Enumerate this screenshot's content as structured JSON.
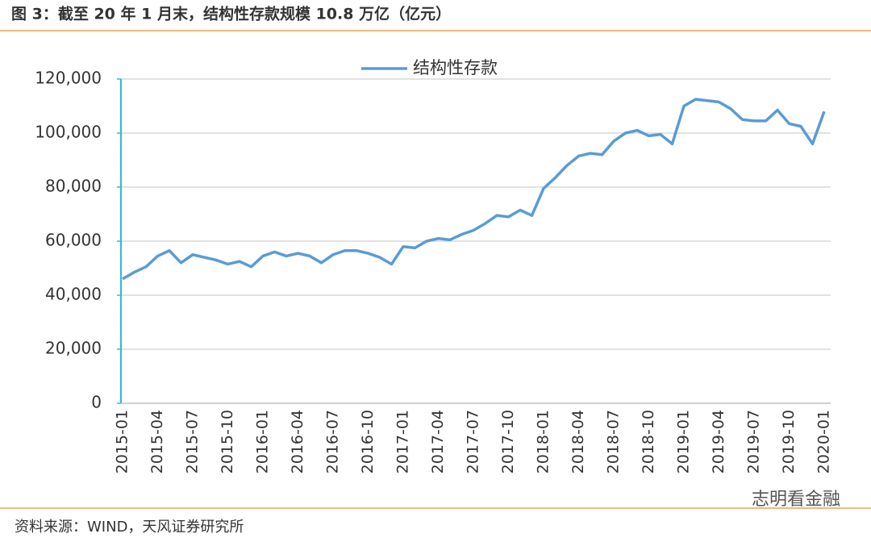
{
  "chart_data": {
    "type": "line",
    "title": "图 3：截至 20 年 1 月末，结构性存款规模 10.8 万亿（亿元）",
    "source": "资料来源：WIND，天风证券研究所",
    "watermark": "志明看金融",
    "categories": [
      "2015-01",
      null,
      null,
      "2015-04",
      null,
      null,
      "2015-07",
      null,
      null,
      "2015-10",
      null,
      null,
      "2016-01",
      null,
      null,
      "2016-04",
      null,
      null,
      "2016-07",
      null,
      null,
      "2016-10",
      null,
      null,
      "2017-01",
      null,
      null,
      "2017-04",
      null,
      null,
      "2017-07",
      null,
      null,
      "2017-10",
      null,
      null,
      "2018-01",
      null,
      null,
      "2018-04",
      null,
      null,
      "2018-07",
      null,
      null,
      "2018-10",
      null,
      null,
      "2019-01",
      null,
      null,
      "2019-04",
      null,
      null,
      "2019-07",
      null,
      null,
      "2019-10",
      null,
      null,
      "2020-01"
    ],
    "series": [
      {
        "name": "结构性存款",
        "color": "#5b9bd5",
        "values": [
          46000,
          48500,
          50500,
          54500,
          56500,
          52000,
          55000,
          54000,
          53000,
          51500,
          52500,
          50500,
          54500,
          56000,
          54500,
          55500,
          54500,
          52000,
          55000,
          56500,
          56500,
          55500,
          54000,
          51500,
          58000,
          57500,
          60000,
          61000,
          60500,
          62500,
          64000,
          66500,
          69500,
          69000,
          71500,
          69500,
          79500,
          83500,
          88000,
          91500,
          92500,
          92000,
          97000,
          100000,
          101000,
          99000,
          99500,
          96000,
          110000,
          112500,
          112000,
          111500,
          109000,
          105000,
          104500,
          104500,
          108500,
          103500,
          102500,
          96000,
          108000
        ]
      }
    ],
    "ylim": [
      0,
      120000
    ],
    "yticks": [
      0,
      {
        "value": 20000,
        "label": "20,000"
      },
      {
        "value": 40000,
        "label": "40,000"
      },
      {
        "value": 60000,
        "label": "60,000"
      },
      {
        "value": 80000,
        "label": "80,000"
      },
      {
        "value": 100000,
        "label": "100,000"
      },
      {
        "value": 120000,
        "label": "120,000"
      }
    ],
    "grid": true
  }
}
